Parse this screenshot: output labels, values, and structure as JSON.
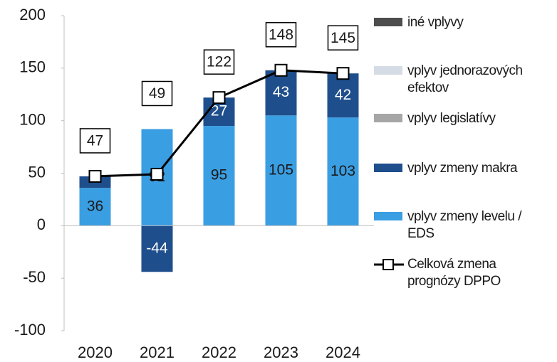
{
  "chart_data": {
    "type": "stacked-bar-line",
    "categories": [
      "2020",
      "2021",
      "2022",
      "2023",
      "2024"
    ],
    "series": [
      {
        "name": "iné vplyvy",
        "color": "#4d4d4d",
        "values": [
          0,
          0,
          0,
          0,
          0
        ]
      },
      {
        "name": "vplyv jednorazových efektov",
        "color": "#d6dce5",
        "values": [
          0,
          0,
          0,
          0,
          0
        ]
      },
      {
        "name": "vplyv legislatívy",
        "color": "#a6a6a6",
        "values": [
          0,
          0,
          0,
          0,
          0
        ]
      },
      {
        "name": "vplyv zmeny makra",
        "color": "#1f4e8c",
        "label_color": "#ffffff",
        "values": [
          11,
          -44,
          27,
          43,
          42
        ]
      },
      {
        "name": "vplyv zmeny levelu / EDS",
        "color": "#3a9ee2",
        "label_color": "#1a1a1a",
        "values": [
          36,
          92,
          95,
          105,
          103
        ]
      }
    ],
    "line": {
      "name": "Celková zmena prognózy DPPO",
      "color": "#000000",
      "values": [
        47,
        49,
        122,
        148,
        145
      ]
    },
    "ylim": [
      -100,
      200
    ],
    "yticks": [
      -100,
      -50,
      0,
      50,
      100,
      150,
      200
    ],
    "grid": false
  }
}
